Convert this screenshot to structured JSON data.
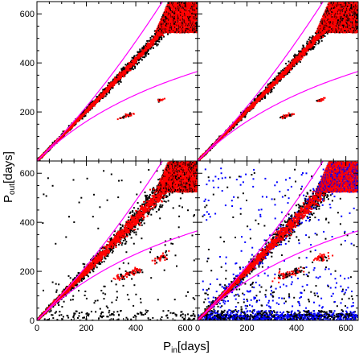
{
  "chart_data": {
    "type": "scatter",
    "layout": "2x2 panels, shared axes",
    "xlabel": {
      "main": "P",
      "sub": "in",
      "unit": "[days]"
    },
    "ylabel": {
      "main": "P",
      "sub": "out",
      "unit": "[days]"
    },
    "xlim": [
      0,
      650
    ],
    "ylim": [
      0,
      650
    ],
    "x_ticks": [
      0,
      200,
      400,
      600
    ],
    "y_ticks": [
      200,
      400,
      600
    ],
    "x_minor_step": 50,
    "y_minor_step": 50,
    "reference_curves": {
      "color": "#ff00ff",
      "upper": {
        "form": "y = x + c*x^2",
        "c": 0.00055,
        "x_end": 560
      },
      "lower": {
        "form": "y = x / (1 + c*x)",
        "c": 0.0012,
        "x_end": 650
      }
    },
    "colors": {
      "black_points": "#000000",
      "red_points": "#ff0000",
      "blue_points": "#0000ff",
      "curves": "#ff00ff"
    },
    "panels": [
      {
        "position": "top-left",
        "scatter_level": 0,
        "blue": false,
        "clusters": [
          [
            350,
            180
          ],
          [
            375,
            188
          ],
          [
            500,
            248
          ]
        ]
      },
      {
        "position": "top-right",
        "scatter_level": 0,
        "blue": false,
        "clusters": [
          [
            350,
            180
          ],
          [
            375,
            188
          ],
          [
            500,
            248
          ]
        ]
      },
      {
        "position": "bottom-left",
        "scatter_level": 1,
        "blue": false,
        "clusters": [
          [
            350,
            180
          ],
          [
            400,
            200
          ],
          [
            500,
            255
          ]
        ]
      },
      {
        "position": "bottom-right",
        "scatter_level": 2,
        "blue": true,
        "clusters": [
          [
            350,
            180
          ],
          [
            400,
            200
          ],
          [
            500,
            255
          ]
        ]
      }
    ]
  }
}
